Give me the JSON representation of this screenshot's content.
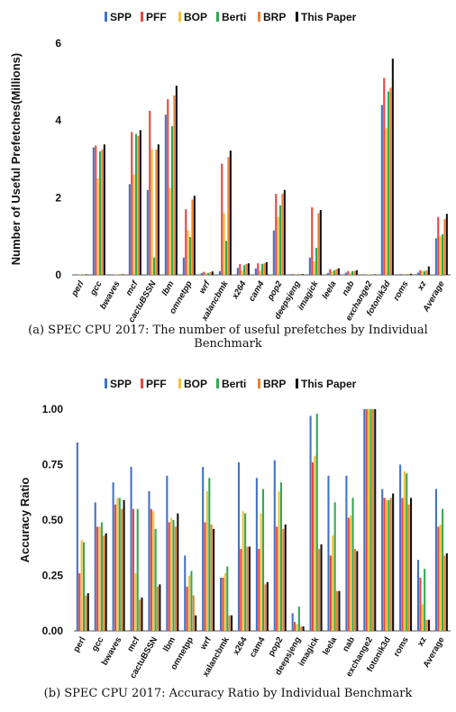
{
  "captions": {
    "a": "(a) SPEC CPU 2017: The number of useful prefetches by Individual Benchmark",
    "b": "(b) SPEC CPU 2017: Accuracy Ratio by Individual Benchmark"
  },
  "legend": [
    {
      "name": "SPP",
      "color": "#4472C4"
    },
    {
      "name": "PFF",
      "color": "#E8473E"
    },
    {
      "name": "BOP",
      "color": "#F5C13B"
    },
    {
      "name": "Berti",
      "color": "#35A853"
    },
    {
      "name": "BRP",
      "color": "#F08030"
    },
    {
      "name": "This Paper",
      "color": "#111111"
    }
  ],
  "chart_data": [
    {
      "type": "bar",
      "ylabel": "Number of Useful Prefetches(Millions)",
      "ylim": [
        0,
        6
      ],
      "yticks": [
        0,
        2,
        4,
        6
      ],
      "grid": false,
      "legend_position": "top",
      "categories": [
        "perl",
        "gcc",
        "bwaves",
        "mcf",
        "cactuBSSN",
        "lbm",
        "omnetpp",
        "wrf",
        "xalancbmk",
        "x264",
        "cam4",
        "pop2",
        "deepsjeng",
        "imagick",
        "leela",
        "nab",
        "exchange2",
        "fotonik3d",
        "roms",
        "xz",
        "Average"
      ],
      "series": [
        {
          "name": "SPP",
          "values": [
            0.01,
            3.3,
            0.01,
            2.35,
            2.2,
            4.15,
            0.45,
            0.05,
            0.1,
            0.18,
            0.17,
            1.15,
            0.02,
            0.45,
            0.05,
            0.06,
            0.0,
            4.4,
            0.02,
            0.06,
            0.95
          ]
        },
        {
          "name": "PFF",
          "values": [
            0.01,
            3.35,
            0.01,
            3.7,
            4.25,
            4.55,
            1.7,
            0.08,
            2.88,
            0.28,
            0.3,
            2.1,
            0.02,
            1.75,
            0.15,
            0.1,
            0.0,
            5.1,
            0.02,
            0.12,
            1.5
          ]
        },
        {
          "name": "BOP",
          "values": [
            0.01,
            2.5,
            0.01,
            2.6,
            3.25,
            2.25,
            1.15,
            0.05,
            1.6,
            0.12,
            0.12,
            1.5,
            0.02,
            0.35,
            0.08,
            0.05,
            0.0,
            3.8,
            0.02,
            0.1,
            1.0
          ]
        },
        {
          "name": "Berti",
          "values": [
            0.01,
            3.2,
            0.01,
            3.65,
            0.45,
            3.85,
            0.98,
            0.05,
            0.88,
            0.25,
            0.28,
            1.8,
            0.02,
            0.7,
            0.12,
            0.1,
            0.0,
            4.75,
            0.02,
            0.1,
            1.05
          ]
        },
        {
          "name": "BRP",
          "values": [
            0.01,
            3.25,
            0.01,
            3.6,
            3.25,
            4.65,
            1.95,
            0.07,
            3.05,
            0.28,
            0.3,
            2.1,
            0.02,
            1.6,
            0.15,
            0.1,
            0.0,
            4.85,
            0.02,
            0.12,
            1.45
          ]
        },
        {
          "name": "This Paper",
          "values": [
            0.01,
            3.38,
            0.01,
            3.75,
            3.38,
            4.9,
            2.05,
            0.09,
            3.22,
            0.3,
            0.33,
            2.2,
            0.02,
            1.68,
            0.17,
            0.12,
            0.0,
            5.6,
            0.03,
            0.22,
            1.58
          ]
        }
      ]
    },
    {
      "type": "bar",
      "ylabel": "Accuracy Ratio",
      "ylim": [
        0,
        1
      ],
      "yticks": [
        0,
        0.25,
        0.5,
        0.75,
        1.0
      ],
      "ytick_labels": [
        "0.00",
        "0.25",
        "0.50",
        "0.75",
        "1.00"
      ],
      "grid": false,
      "legend_position": "top",
      "categories": [
        "perl",
        "gcc",
        "bwaves",
        "mcf",
        "cactuBSSN",
        "lbm",
        "omnetpp",
        "wrf",
        "xalancbmk",
        "x264",
        "cam4",
        "pop2",
        "deepsjeng",
        "imagick",
        "leela",
        "nab",
        "exchange2",
        "fotonik3d",
        "roms",
        "xz",
        "Average"
      ],
      "series": [
        {
          "name": "SPP",
          "values": [
            0.85,
            0.58,
            0.67,
            0.74,
            0.63,
            0.7,
            0.34,
            0.74,
            0.24,
            0.76,
            0.69,
            0.77,
            0.08,
            0.97,
            0.7,
            0.7,
            1.0,
            0.64,
            0.75,
            0.32,
            0.64
          ]
        },
        {
          "name": "PFF",
          "values": [
            0.26,
            0.47,
            0.57,
            0.55,
            0.55,
            0.49,
            0.2,
            0.49,
            0.24,
            0.37,
            0.37,
            0.47,
            0.04,
            0.76,
            0.34,
            0.51,
            1.0,
            0.6,
            0.6,
            0.24,
            0.47
          ]
        },
        {
          "name": "BOP",
          "values": [
            0.41,
            0.47,
            0.6,
            0.26,
            0.54,
            0.51,
            0.25,
            0.63,
            0.26,
            0.54,
            0.53,
            0.63,
            0.03,
            0.79,
            0.43,
            0.52,
            1.0,
            0.59,
            0.72,
            0.12,
            0.48
          ]
        },
        {
          "name": "Berti",
          "values": [
            0.4,
            0.49,
            0.6,
            0.55,
            0.46,
            0.5,
            0.27,
            0.69,
            0.29,
            0.53,
            0.64,
            0.67,
            0.11,
            0.98,
            0.58,
            0.6,
            1.0,
            0.59,
            0.71,
            0.28,
            0.55
          ]
        },
        {
          "name": "BRP",
          "values": [
            0.16,
            0.43,
            0.55,
            0.14,
            0.2,
            0.47,
            0.16,
            0.48,
            0.07,
            0.38,
            0.21,
            0.46,
            0.02,
            0.37,
            0.18,
            0.37,
            1.0,
            0.6,
            0.57,
            0.05,
            0.34
          ]
        },
        {
          "name": "This Paper",
          "values": [
            0.17,
            0.44,
            0.59,
            0.15,
            0.21,
            0.53,
            0.07,
            0.46,
            0.07,
            0.38,
            0.22,
            0.48,
            0.02,
            0.39,
            0.18,
            0.36,
            1.0,
            0.62,
            0.6,
            0.05,
            0.35
          ]
        }
      ]
    }
  ]
}
